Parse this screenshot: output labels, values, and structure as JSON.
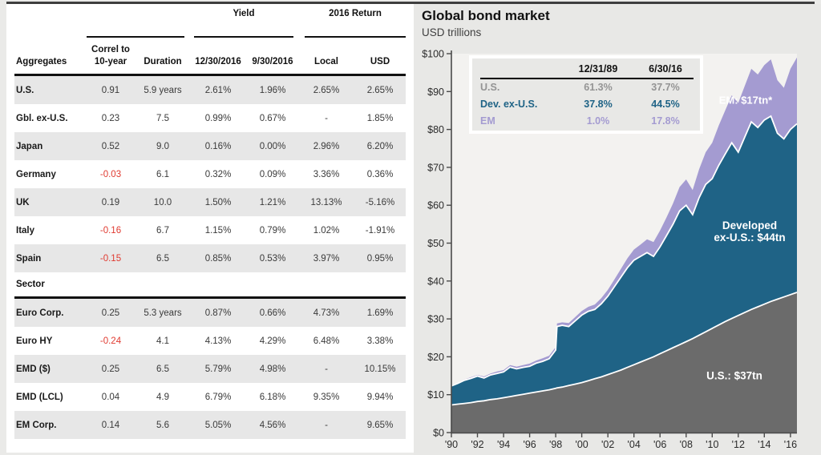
{
  "table": {
    "group_headers": [
      {
        "label": ""
      },
      {
        "label": "Yield"
      },
      {
        "label": "2016 Return"
      }
    ],
    "columns": [
      "Aggregates",
      "Correl to\n10-year",
      "Duration",
      "12/30/2016",
      "9/30/2016",
      "Local",
      "USD"
    ],
    "rows": [
      {
        "label": "U.S.",
        "correl": "0.91",
        "red_correl": false,
        "duration": "5.9 years",
        "yield_1230": "2.61%",
        "yield_0930": "1.96%",
        "ret_local": "2.65%",
        "ret_usd": "2.65%"
      },
      {
        "label": "Gbl. ex-U.S.",
        "correl": "0.23",
        "red_correl": false,
        "duration": "7.5",
        "yield_1230": "0.99%",
        "yield_0930": "0.67%",
        "ret_local": "-",
        "ret_usd": "1.85%"
      },
      {
        "label": "Japan",
        "correl": "0.52",
        "red_correl": false,
        "duration": "9.0",
        "yield_1230": "0.16%",
        "yield_0930": "0.00%",
        "ret_local": "2.96%",
        "ret_usd": "6.20%"
      },
      {
        "label": "Germany",
        "correl": "-0.03",
        "red_correl": true,
        "duration": "6.1",
        "yield_1230": "0.32%",
        "yield_0930": "0.09%",
        "ret_local": "3.36%",
        "ret_usd": "0.36%"
      },
      {
        "label": "UK",
        "correl": "0.19",
        "red_correl": false,
        "duration": "10.0",
        "yield_1230": "1.50%",
        "yield_0930": "1.21%",
        "ret_local": "13.13%",
        "ret_usd": "-5.16%"
      },
      {
        "label": "Italy",
        "correl": "-0.16",
        "red_correl": true,
        "duration": "6.7",
        "yield_1230": "1.15%",
        "yield_0930": "0.79%",
        "ret_local": "1.02%",
        "ret_usd": "-1.91%"
      },
      {
        "label": "Spain",
        "correl": "-0.15",
        "red_correl": true,
        "duration": "6.5",
        "yield_1230": "0.85%",
        "yield_0930": "0.53%",
        "ret_local": "3.97%",
        "ret_usd": "0.95%"
      },
      {
        "section": true,
        "label": "Sector"
      },
      {
        "label": "Euro Corp.",
        "correl": "0.25",
        "red_correl": false,
        "duration": "5.3 years",
        "yield_1230": "0.87%",
        "yield_0930": "0.66%",
        "ret_local": "4.73%",
        "ret_usd": "1.69%"
      },
      {
        "label": "Euro HY",
        "correl": "-0.24",
        "red_correl": true,
        "duration": "4.1",
        "yield_1230": "4.13%",
        "yield_0930": "4.29%",
        "ret_local": "6.48%",
        "ret_usd": "3.38%"
      },
      {
        "label": "EMD ($)",
        "correl": "0.25",
        "red_correl": false,
        "duration": "6.5",
        "yield_1230": "5.79%",
        "yield_0930": "4.98%",
        "ret_local": "-",
        "ret_usd": "10.15%"
      },
      {
        "label": "EMD (LCL)",
        "correl": "0.04",
        "red_correl": false,
        "duration": "4.9",
        "yield_1230": "6.79%",
        "yield_0930": "6.18%",
        "ret_local": "9.35%",
        "ret_usd": "9.94%"
      },
      {
        "label": "EM Corp.",
        "correl": "0.14",
        "red_correl": false,
        "duration": "5.6",
        "yield_1230": "5.05%",
        "yield_0930": "4.56%",
        "ret_local": "-",
        "ret_usd": "9.65%"
      }
    ],
    "negative_color": "#e03a30"
  },
  "chart_data": {
    "type": "area",
    "stacked": true,
    "title": "Global bond market",
    "subtitle": "USD trillions",
    "ylabel": "USD trillions",
    "ylim": [
      0,
      100
    ],
    "grid": false,
    "ytick_values": [
      0,
      10,
      20,
      30,
      40,
      50,
      60,
      70,
      80,
      90,
      100
    ],
    "yticks": [
      "$0",
      "$10",
      "$20",
      "$30",
      "$40",
      "$50",
      "$60",
      "$70",
      "$80",
      "$90",
      "$100"
    ],
    "xtick_years": [
      1990,
      1992,
      1994,
      1996,
      1998,
      2000,
      2002,
      2004,
      2006,
      2008,
      2010,
      2012,
      2014,
      2016
    ],
    "xticks": [
      "'90",
      "'92",
      "'94",
      "'96",
      "'98",
      "'00",
      "'02",
      "'04",
      "'06",
      "'08",
      "'10",
      "'12",
      "'14",
      "'16"
    ],
    "x": [
      1990,
      1990.5,
      1991,
      1991.5,
      1992,
      1992.5,
      1993,
      1993.5,
      1994,
      1994.5,
      1995,
      1995.5,
      1996,
      1996.5,
      1997,
      1997.5,
      1998.0,
      1998.1,
      1998.5,
      1999,
      1999.5,
      2000,
      2000.5,
      2001,
      2001.5,
      2002,
      2002.5,
      2003,
      2003.5,
      2004,
      2004.5,
      2005,
      2005.5,
      2006,
      2006.5,
      2007,
      2007.5,
      2008,
      2008.5,
      2009,
      2009.5,
      2010,
      2010.5,
      2011,
      2011.5,
      2012,
      2012.5,
      2013,
      2013.5,
      2014,
      2014.5,
      2015,
      2015.5,
      2016,
      2016.5
    ],
    "series": [
      {
        "name": "U.S.",
        "color": "#6b6b6b",
        "label": "U.S.: $37tn",
        "values": [
          7.3,
          7.5,
          7.7,
          7.9,
          8.2,
          8.4,
          8.7,
          8.9,
          9.2,
          9.5,
          9.8,
          10.1,
          10.4,
          10.7,
          11.0,
          11.3,
          11.7,
          11.8,
          12.0,
          12.4,
          12.8,
          13.2,
          13.7,
          14.2,
          14.7,
          15.3,
          15.9,
          16.5,
          17.2,
          17.9,
          18.6,
          19.3,
          20.0,
          20.8,
          21.6,
          22.4,
          23.2,
          24.0,
          24.8,
          25.7,
          26.6,
          27.5,
          28.4,
          29.3,
          30.1,
          30.9,
          31.7,
          32.5,
          33.2,
          33.9,
          34.6,
          35.2,
          35.8,
          36.4,
          37.0
        ]
      },
      {
        "name": "Dev. ex-U.S.",
        "color": "#1f6386",
        "label_lines": [
          "Developed",
          "ex-U.S.: $44tn"
        ],
        "values": [
          5.0,
          5.5,
          6.1,
          6.4,
          6.7,
          6.0,
          6.5,
          6.7,
          6.8,
          7.8,
          7.0,
          7.1,
          7.1,
          7.6,
          7.8,
          8.2,
          10.1,
          16.2,
          16.3,
          15.6,
          16.7,
          17.8,
          18.3,
          18.3,
          19.3,
          20.7,
          22.6,
          24.5,
          26.3,
          27.6,
          27.9,
          28.2,
          26.5,
          28.2,
          30.4,
          32.6,
          35.3,
          36.0,
          32.7,
          36.3,
          38.9,
          39.5,
          42.1,
          44.2,
          46.4,
          43.1,
          46.3,
          49.5,
          47.3,
          48.6,
          48.9,
          43.8,
          41.7,
          43.6,
          44.5
        ]
      },
      {
        "name": "EM",
        "color": "#a49bd1",
        "label": "EM: $17tn*",
        "values": [
          0.2,
          0.2,
          0.2,
          0.3,
          0.3,
          0.4,
          0.4,
          0.5,
          0.5,
          0.5,
          0.6,
          0.6,
          0.7,
          0.7,
          0.8,
          0.8,
          0.8,
          0.8,
          0.8,
          0.9,
          1.0,
          1.1,
          1.2,
          1.3,
          1.5,
          1.7,
          1.9,
          2.2,
          2.5,
          2.8,
          3.1,
          3.5,
          3.8,
          4.3,
          4.8,
          5.5,
          6.3,
          6.8,
          6.5,
          7.5,
          8.5,
          9.5,
          10.5,
          11.5,
          12.5,
          13.0,
          13.5,
          14.0,
          14.0,
          14.5,
          15.0,
          14.0,
          13.5,
          16.0,
          17.5
        ]
      }
    ],
    "legend": {
      "position": "top-left",
      "col_headers": [
        "12/31/89",
        "6/30/16"
      ],
      "rows": [
        {
          "name": "U.S.",
          "v1": "61.3%",
          "v2": "37.7%",
          "color": "#949494"
        },
        {
          "name": "Dev. ex-U.S.",
          "v1": "37.8%",
          "v2": "44.5%",
          "color": "#1f6386"
        },
        {
          "name": "EM",
          "v1": "1.0%",
          "v2": "17.8%",
          "color": "#a49bd1"
        }
      ]
    }
  }
}
